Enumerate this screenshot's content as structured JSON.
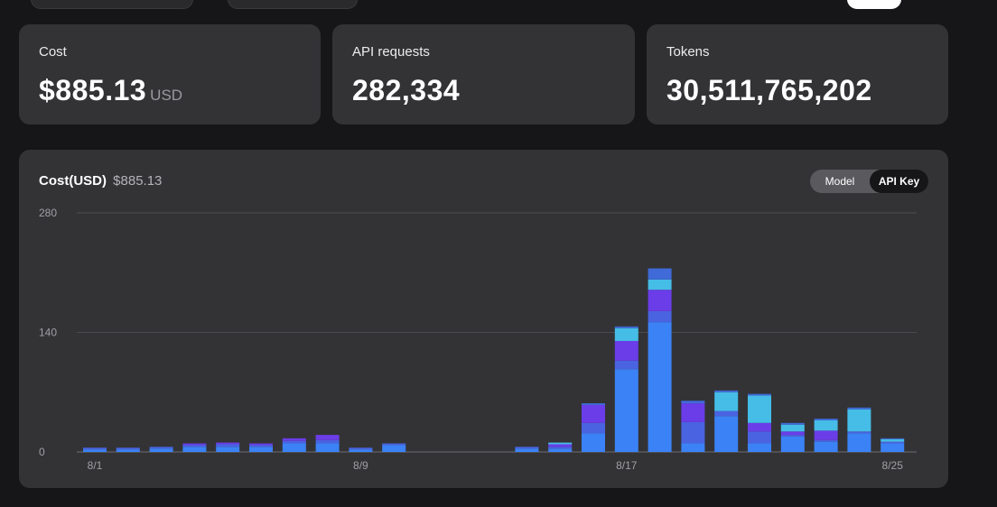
{
  "summary": {
    "cost": {
      "label": "Cost",
      "value": "$885.13",
      "unit": "USD"
    },
    "requests": {
      "label": "API requests",
      "value": "282,334"
    },
    "tokens": {
      "label": "Tokens",
      "value": "30,511,765,202"
    }
  },
  "chart_card": {
    "title": "Cost(USD)",
    "total": "$885.13",
    "toggle": {
      "options": [
        "Model",
        "API Key"
      ],
      "selected": "API Key"
    }
  },
  "chart_data": {
    "type": "bar",
    "stacked": true,
    "title": "Cost(USD)",
    "xlabel": "",
    "ylabel": "",
    "ylim": [
      0,
      280
    ],
    "y_ticks": [
      0,
      140,
      280
    ],
    "x_tick_labels": {
      "8/1": 0,
      "8/9": 8,
      "8/17": 16,
      "8/25": 24
    },
    "grid": true,
    "legend": "none",
    "colors": [
      "#3b82f6",
      "#4a63e0",
      "#6a3de8",
      "#45bde6",
      "#3f6ad8"
    ],
    "categories": [
      "8/1",
      "8/2",
      "8/3",
      "8/4",
      "8/5",
      "8/6",
      "8/7",
      "8/8",
      "8/9",
      "8/10",
      "8/11",
      "8/12",
      "8/13",
      "8/14",
      "8/15",
      "8/16",
      "8/17",
      "8/18",
      "8/19",
      "8/20",
      "8/21",
      "8/22",
      "8/23",
      "8/24",
      "8/25"
    ],
    "series": [
      {
        "values": [
          3,
          3,
          4,
          6,
          6,
          6,
          10,
          10,
          3,
          8,
          0,
          0,
          0,
          4,
          4,
          22,
          97,
          152,
          10,
          42,
          10,
          18,
          12,
          22,
          10
        ]
      },
      {
        "values": [
          2,
          2,
          2,
          2,
          3,
          2,
          3,
          4,
          2,
          2,
          0,
          0,
          0,
          2,
          2,
          12,
          10,
          13,
          25,
          6,
          14,
          2,
          2,
          2,
          2
        ]
      },
      {
        "values": [
          0,
          0,
          0,
          2,
          2,
          2,
          3,
          6,
          0,
          0,
          0,
          0,
          0,
          0,
          3,
          21,
          23,
          25,
          22,
          0,
          10,
          4,
          11,
          0,
          0
        ]
      },
      {
        "values": [
          0,
          0,
          0,
          0,
          0,
          0,
          0,
          0,
          0,
          0,
          0,
          0,
          0,
          0,
          2,
          0,
          15,
          12,
          0,
          22,
          32,
          8,
          12,
          26,
          3
        ]
      },
      {
        "values": [
          0,
          0,
          0,
          0,
          0,
          0,
          0,
          0,
          0,
          0,
          0,
          0,
          0,
          0,
          0,
          2,
          2,
          13,
          3,
          2,
          2,
          2,
          2,
          2,
          1
        ]
      }
    ]
  }
}
